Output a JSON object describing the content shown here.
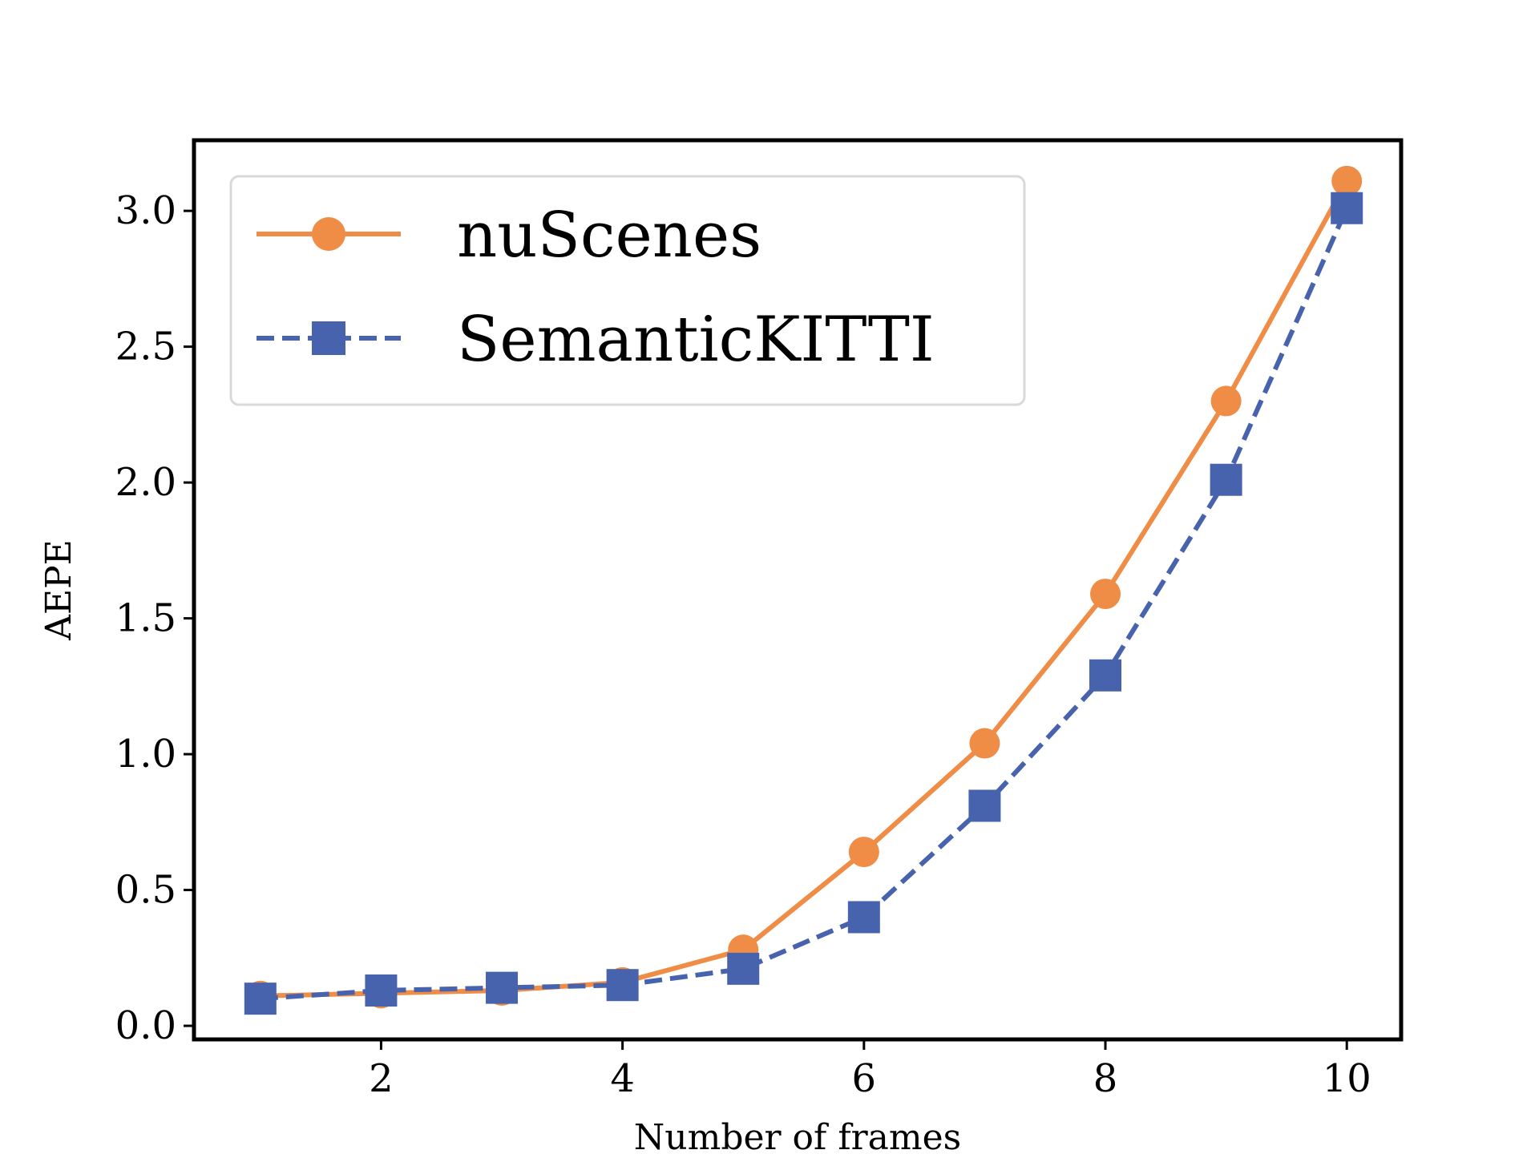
{
  "colors": {
    "nuscenes": "#ef8c46",
    "semantickitti": "#4863ad",
    "axes": "#000000",
    "legend_border": "#d9d9d9"
  },
  "chart_data": {
    "type": "line",
    "title": "",
    "xlabel": "Number of frames",
    "ylabel": "AEPE",
    "x": [
      1,
      2,
      3,
      4,
      5,
      6,
      7,
      8,
      9,
      10
    ],
    "xticks": [
      2,
      4,
      6,
      8,
      10
    ],
    "xtick_labels": [
      "2",
      "4",
      "6",
      "8",
      "10"
    ],
    "xlim": [
      0.45,
      10.45
    ],
    "yticks": [
      0.0,
      0.5,
      1.0,
      1.5,
      2.0,
      2.5,
      3.0
    ],
    "ytick_labels": [
      "0.0",
      "0.5",
      "1.0",
      "1.5",
      "2.0",
      "2.5",
      "3.0"
    ],
    "ylim": [
      -0.05,
      3.26
    ],
    "grid": false,
    "legend_position": "upper-left",
    "series": [
      {
        "name": "nuScenes",
        "marker": "circle",
        "line_style": "solid",
        "color": "#ef8c46",
        "values": [
          0.11,
          0.12,
          0.13,
          0.16,
          0.28,
          0.64,
          1.04,
          1.59,
          2.3,
          3.11
        ]
      },
      {
        "name": "SemanticKITTI",
        "marker": "square",
        "line_style": "dashed",
        "color": "#4863ad",
        "values": [
          0.1,
          0.13,
          0.14,
          0.15,
          0.21,
          0.4,
          0.81,
          1.29,
          2.01,
          3.01
        ]
      }
    ]
  }
}
